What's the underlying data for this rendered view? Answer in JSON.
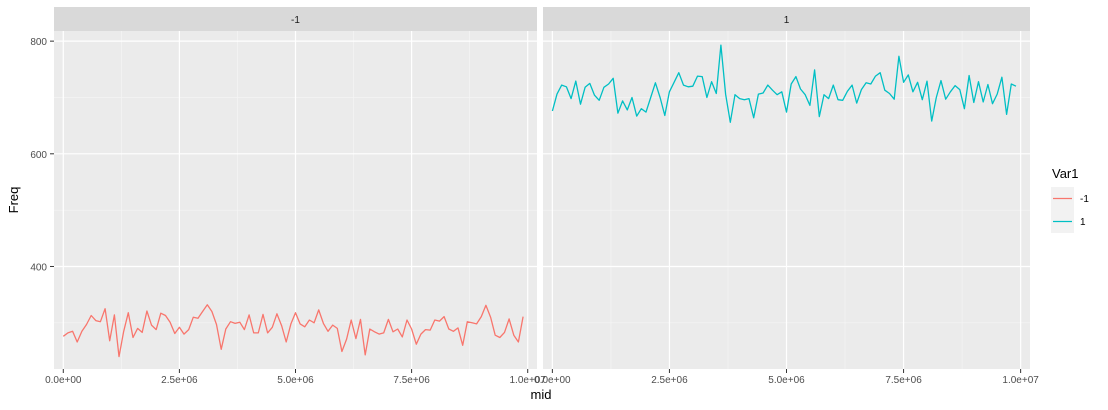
{
  "chart_data": {
    "type": "line",
    "facet_variable": "Var1",
    "facets": [
      "-1",
      "1"
    ],
    "xlabel": "mid",
    "ylabel": "Freq",
    "xlim": [
      -200000,
      10200000
    ],
    "ylim": [
      218,
      818
    ],
    "x_ticks": [
      0,
      2500000,
      5000000,
      7500000,
      10000000
    ],
    "x_tick_labels": [
      "0.0e+00",
      "2.5e+06",
      "5.0e+06",
      "7.5e+06",
      "1.0e+07"
    ],
    "y_ticks": [
      400,
      600,
      800
    ],
    "y_tick_labels": [
      "400",
      "600",
      "800"
    ],
    "grid": true,
    "legend": {
      "title": "Var1",
      "position": "right",
      "entries": [
        {
          "label": "-1",
          "color": "#F8766D"
        },
        {
          "label": "1",
          "color": "#00BFC4"
        }
      ]
    },
    "x": {
      "start": 0,
      "step": 100000,
      "count": 100
    },
    "series": [
      {
        "name": "-1",
        "color": "#F8766D",
        "values": [
          276,
          282,
          285,
          266,
          285,
          297,
          313,
          304,
          302,
          325,
          268,
          314,
          240,
          285,
          318,
          274,
          290,
          283,
          321,
          296,
          288,
          317,
          313,
          301,
          281,
          292,
          280,
          288,
          310,
          308,
          320,
          332,
          320,
          297,
          253,
          289,
          302,
          299,
          301,
          288,
          314,
          282,
          282,
          315,
          282,
          292,
          316,
          295,
          266,
          298,
          318,
          298,
          293,
          305,
          300,
          323,
          299,
          285,
          296,
          290,
          249,
          271,
          305,
          272,
          306,
          243,
          289,
          284,
          280,
          282,
          306,
          284,
          289,
          275,
          305,
          289,
          262,
          280,
          288,
          287,
          305,
          303,
          311,
          289,
          285,
          291,
          260,
          302,
          300,
          298,
          311,
          331,
          310,
          278,
          274,
          283,
          307,
          278,
          266,
          311
        ]
      },
      {
        "name": "1",
        "color": "#00BFC4",
        "values": [
          676,
          706,
          722,
          719,
          698,
          729,
          688,
          718,
          725,
          704,
          695,
          718,
          724,
          734,
          672,
          694,
          678,
          700,
          667,
          680,
          674,
          700,
          726,
          700,
          668,
          710,
          727,
          744,
          722,
          719,
          720,
          738,
          737,
          700,
          728,
          707,
          793,
          706,
          656,
          705,
          698,
          696,
          698,
          664,
          706,
          708,
          722,
          713,
          705,
          710,
          674,
          724,
          737,
          715,
          705,
          686,
          749,
          666,
          705,
          698,
          722,
          696,
          695,
          711,
          722,
          690,
          714,
          726,
          724,
          738,
          744,
          713,
          707,
          697,
          773,
          727,
          740,
          710,
          727,
          696,
          729,
          658,
          700,
          730,
          697,
          710,
          721,
          714,
          680,
          739,
          691,
          728,
          692,
          723,
          689,
          706,
          736,
          670,
          724,
          720
        ]
      }
    ]
  }
}
